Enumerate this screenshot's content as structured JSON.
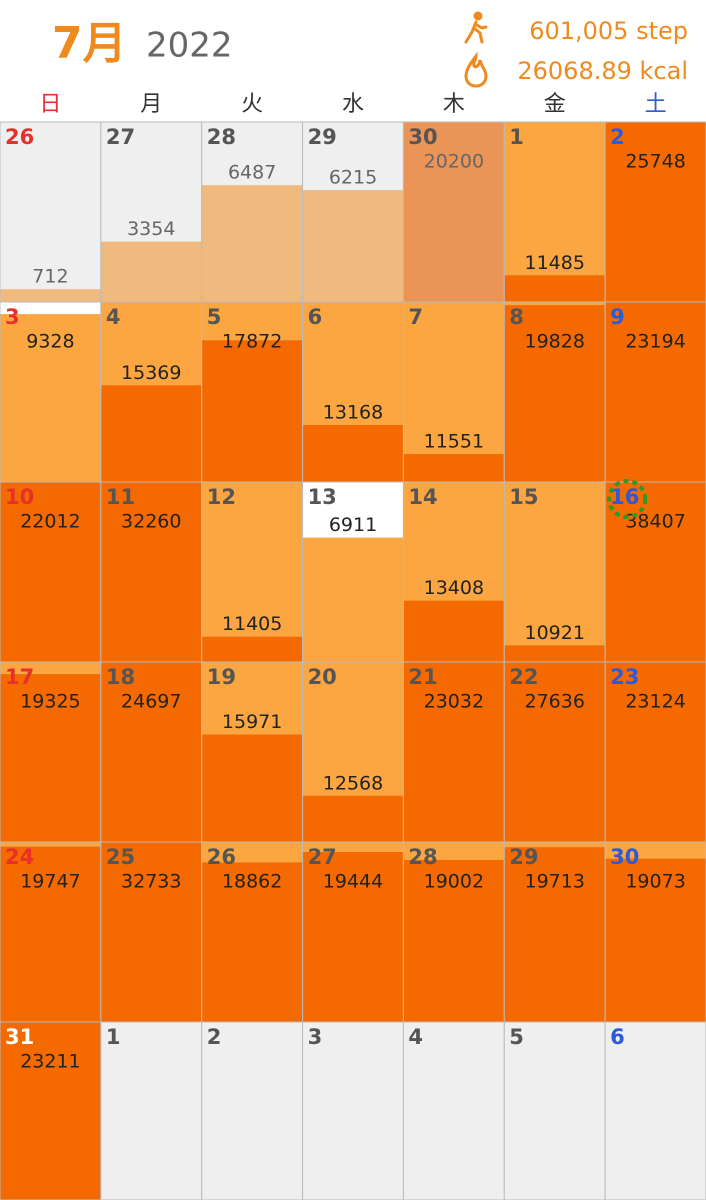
{
  "header": {
    "month": "7月",
    "year": "2022",
    "steps": "601,005 step",
    "kcal": "26068.89 kcal"
  },
  "weekdays": [
    "日",
    "月",
    "火",
    "水",
    "木",
    "金",
    "土"
  ],
  "weeks": [
    [
      {
        "day": 26,
        "steps": 712
      },
      {
        "day": 27,
        "steps": 3354
      },
      {
        "day": 28,
        "steps": 6487
      },
      {
        "day": 29,
        "steps": 6215
      },
      {
        "day": 30,
        "steps": 20200
      },
      {
        "day": 1,
        "steps": 11485
      },
      {
        "day": 2,
        "steps": 25748
      }
    ],
    [
      {
        "day": 3,
        "steps": 9328
      },
      {
        "day": 4,
        "steps": 15369
      },
      {
        "day": 5,
        "steps": 17872
      },
      {
        "day": 6,
        "steps": 13168
      },
      {
        "day": 7,
        "steps": 11551
      },
      {
        "day": 8,
        "steps": 19828
      },
      {
        "day": 9,
        "steps": 23194
      }
    ],
    [
      {
        "day": 10,
        "steps": 22012
      },
      {
        "day": 11,
        "steps": 32260
      },
      {
        "day": 12,
        "steps": 11405
      },
      {
        "day": 13,
        "steps": 6911
      },
      {
        "day": 14,
        "steps": 13408
      },
      {
        "day": 15,
        "steps": 10921
      },
      {
        "day": 16,
        "steps": 38407
      }
    ],
    [
      {
        "day": 17,
        "steps": 19325
      },
      {
        "day": 18,
        "steps": 24697
      },
      {
        "day": 19,
        "steps": 15971
      },
      {
        "day": 20,
        "steps": 12568
      },
      {
        "day": 21,
        "steps": 23032
      },
      {
        "day": 22,
        "steps": 27636
      },
      {
        "day": 23,
        "steps": 23124
      }
    ],
    [
      {
        "day": 24,
        "steps": 19747
      },
      {
        "day": 25,
        "steps": 32733
      },
      {
        "day": 26,
        "steps": 18862
      },
      {
        "day": 27,
        "steps": 19444
      },
      {
        "day": 28,
        "steps": 19002
      },
      {
        "day": 29,
        "steps": 19713
      },
      {
        "day": 30,
        "steps": 19073
      }
    ],
    [
      {
        "day": 31,
        "steps": 23211
      },
      {
        "day": 1
      },
      {
        "day": 2
      },
      {
        "day": 3
      },
      {
        "day": 4
      },
      {
        "day": 5
      },
      {
        "day": 6
      }
    ]
  ]
}
